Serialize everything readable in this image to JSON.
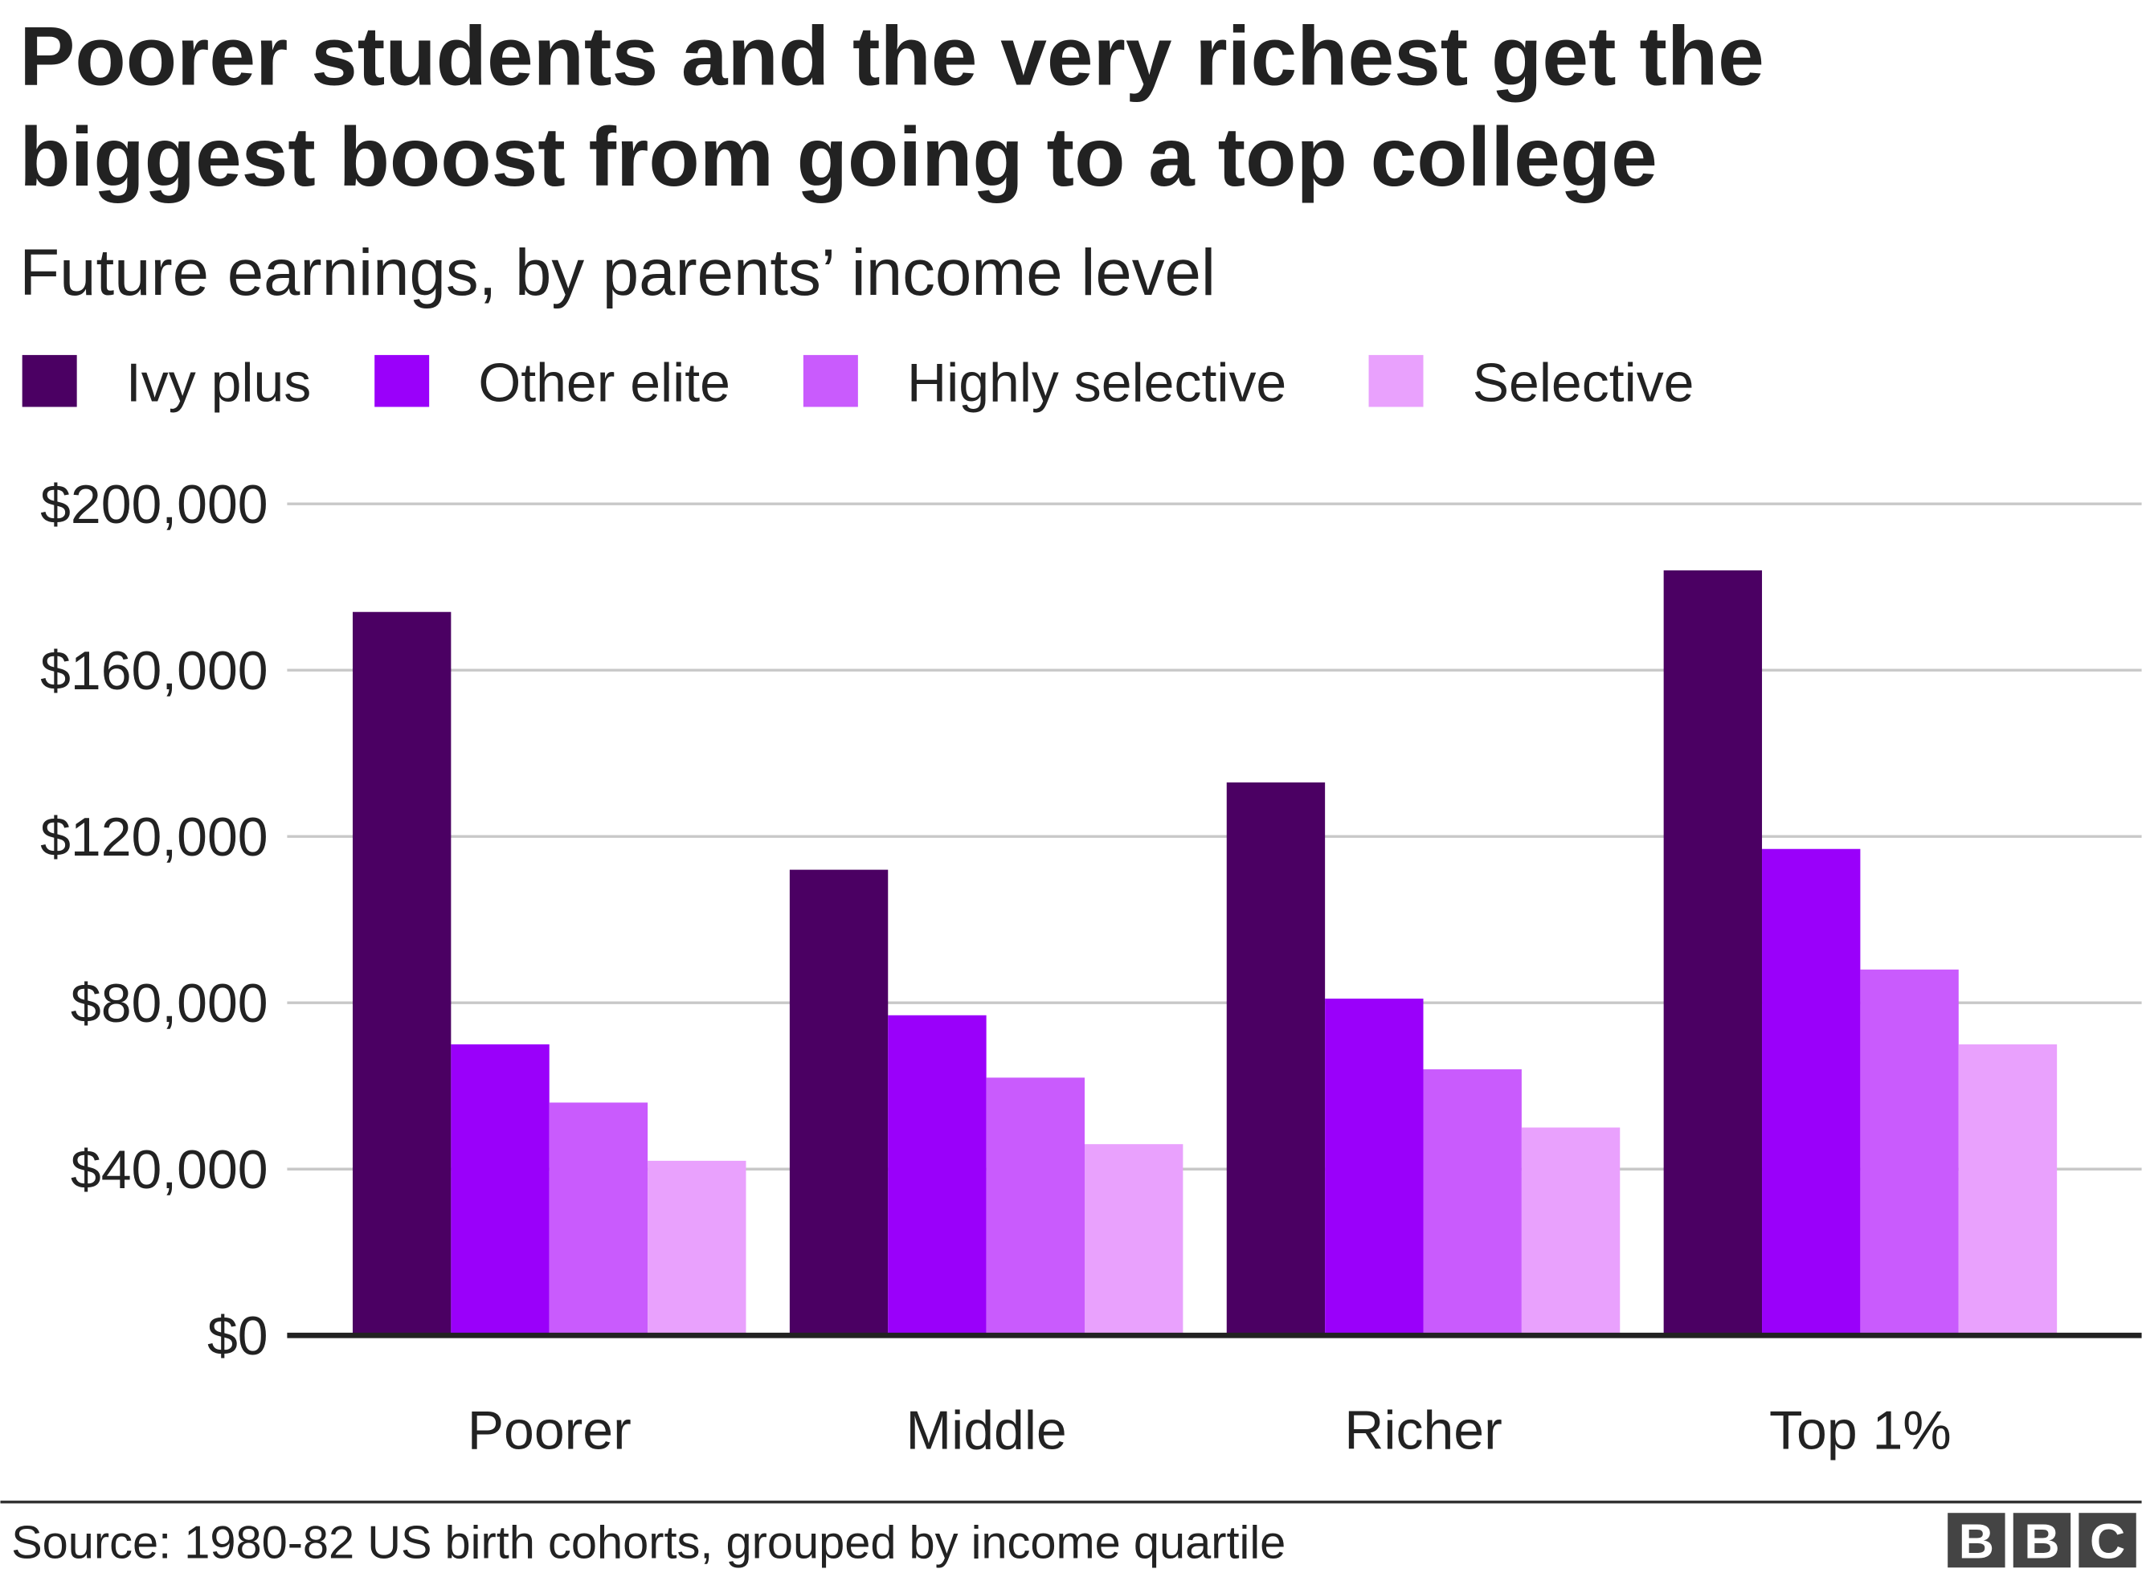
{
  "chart_data": {
    "type": "bar",
    "title": [
      "Poorer students and the very richest get the",
      "biggest boost from going to a top college"
    ],
    "subtitle": "Future earnings, by parents’ income level",
    "categories": [
      "Poorer",
      "Middle",
      "Richer",
      "Top 1%"
    ],
    "series": [
      {
        "name": "Ivy plus",
        "color": "#4b0063",
        "values": [
          174000,
          112000,
          133000,
          184000
        ]
      },
      {
        "name": "Other elite",
        "color": "#9a00fa",
        "values": [
          70000,
          77000,
          81000,
          117000
        ]
      },
      {
        "name": "Highly selective",
        "color": "#c95bfd",
        "values": [
          56000,
          62000,
          64000,
          88000
        ]
      },
      {
        "name": "Selective",
        "color": "#e9a1fd",
        "values": [
          42000,
          46000,
          50000,
          70000
        ]
      }
    ],
    "ylim": [
      0,
      200000
    ],
    "yticks": [
      {
        "value": 0,
        "label": "$0"
      },
      {
        "value": 40000,
        "label": "$40,000"
      },
      {
        "value": 80000,
        "label": "$80,000"
      },
      {
        "value": 120000,
        "label": "$120,000"
      },
      {
        "value": 160000,
        "label": "$160,000"
      },
      {
        "value": 200000,
        "label": "$200,000"
      }
    ],
    "grid": true,
    "legend": "top-left",
    "source": "Source: 1980-82 US birth cohorts, grouped by income quartile",
    "logo": [
      "B",
      "B",
      "C"
    ]
  }
}
